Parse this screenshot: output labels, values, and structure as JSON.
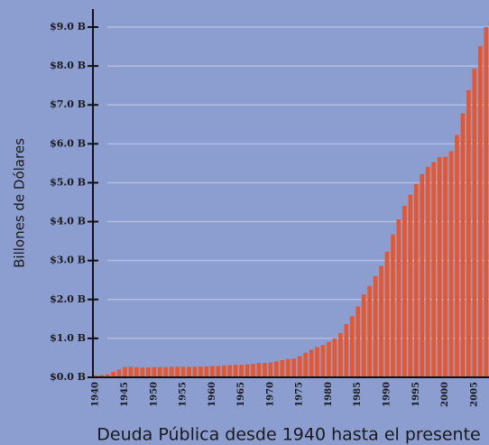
{
  "chart_data": {
    "type": "bar",
    "title": "Deuda Pública desde 1940 hasta el presente",
    "y_label": "Billones de Dólares",
    "categories": [
      "1940",
      null,
      null,
      null,
      null,
      "1945",
      null,
      null,
      null,
      null,
      "1950",
      null,
      null,
      null,
      null,
      "1955",
      null,
      null,
      null,
      null,
      "1960",
      null,
      null,
      null,
      null,
      "1965",
      null,
      null,
      null,
      null,
      "1970",
      null,
      null,
      null,
      null,
      "1975",
      null,
      null,
      null,
      null,
      "1980",
      null,
      null,
      null,
      null,
      "1985",
      null,
      null,
      null,
      null,
      "1990",
      null,
      null,
      null,
      null,
      "1995",
      null,
      null,
      null,
      null,
      "2000",
      null,
      null,
      null,
      null,
      "2005",
      null,
      null
    ],
    "values": [
      0.05,
      0.06,
      0.08,
      0.14,
      0.2,
      0.26,
      0.27,
      0.26,
      0.25,
      0.25,
      0.26,
      0.26,
      0.26,
      0.27,
      0.27,
      0.27,
      0.27,
      0.27,
      0.28,
      0.28,
      0.29,
      0.29,
      0.3,
      0.31,
      0.32,
      0.32,
      0.33,
      0.34,
      0.37,
      0.37,
      0.38,
      0.41,
      0.44,
      0.47,
      0.48,
      0.54,
      0.63,
      0.71,
      0.78,
      0.83,
      0.91,
      1.0,
      1.14,
      1.37,
      1.57,
      1.82,
      2.13,
      2.35,
      2.6,
      2.86,
      3.23,
      3.67,
      4.06,
      4.41,
      4.69,
      4.97,
      5.22,
      5.41,
      5.53,
      5.66,
      5.67,
      5.81,
      6.23,
      6.78,
      7.38,
      7.93,
      8.51,
      9.0
    ],
    "color": "#ec5429",
    "ylim": [
      0,
      9.0
    ],
    "yticks": [
      {
        "value": 0,
        "label": "$0.0 B"
      },
      {
        "value": 1,
        "label": "$1.0 B"
      },
      {
        "value": 2,
        "label": "$2.0 B"
      },
      {
        "value": 3,
        "label": "$3.0 B"
      },
      {
        "value": 4,
        "label": "$4.0 B"
      },
      {
        "value": 5,
        "label": "$5.0 B"
      },
      {
        "value": 6,
        "label": "$6.0 B"
      },
      {
        "value": 7,
        "label": "$7.0 B"
      },
      {
        "value": 8,
        "label": "$8.0 B"
      },
      {
        "value": 9,
        "label": "$9.0 B"
      }
    ],
    "grid": true
  }
}
